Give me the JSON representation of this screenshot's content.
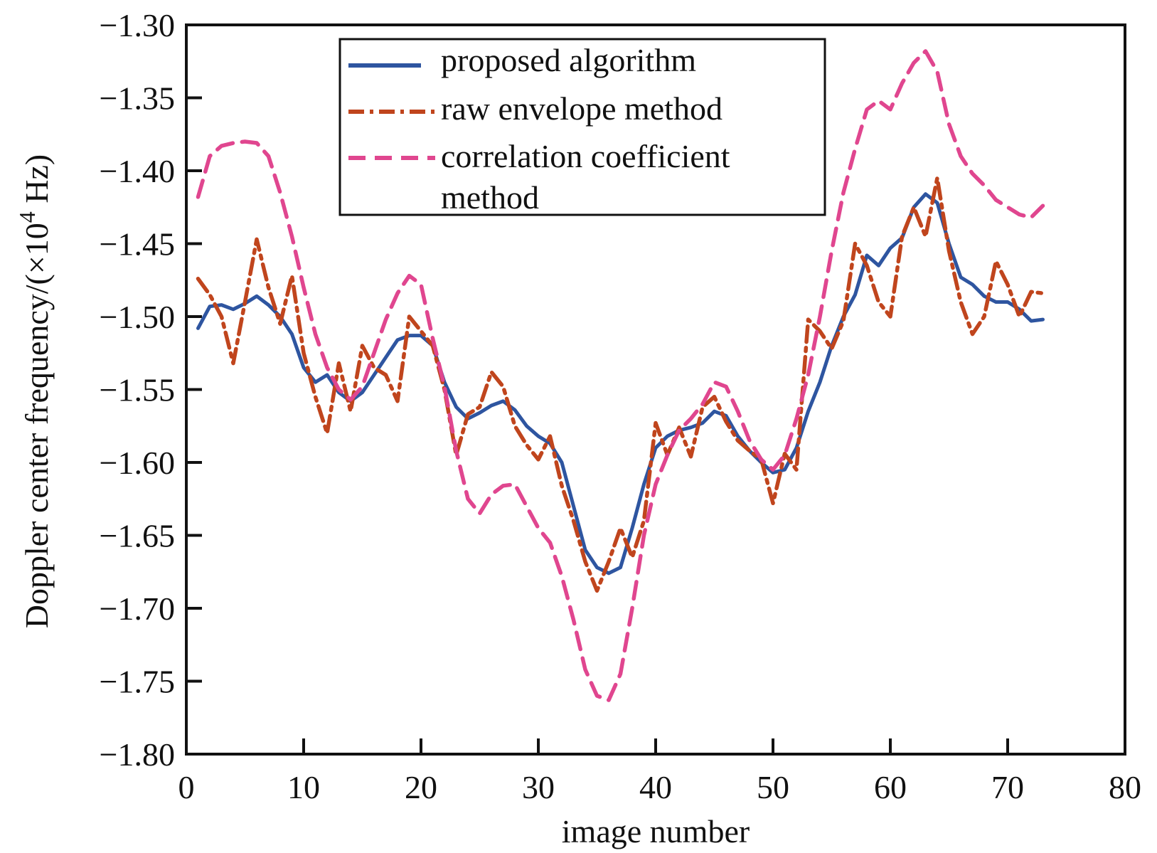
{
  "chart_data": {
    "type": "line",
    "xlabel": "image number",
    "ylabel": "Doppler center frequency/(×10",
    "ylabel_exp": "4",
    "ylabel_unit": " Hz)",
    "xlim": [
      0,
      80
    ],
    "ylim": [
      -1.8,
      -1.3
    ],
    "xticks": [
      0,
      10,
      20,
      30,
      40,
      50,
      60,
      70,
      80
    ],
    "yticks": [
      -1.3,
      -1.35,
      -1.4,
      -1.45,
      -1.5,
      -1.55,
      -1.6,
      -1.65,
      -1.7,
      -1.75,
      -1.8
    ],
    "xtick_labels": [
      "0",
      "10",
      "20",
      "30",
      "40",
      "50",
      "60",
      "70",
      "80"
    ],
    "ytick_labels": [
      "−1.30",
      "−1.35",
      "−1.40",
      "−1.45",
      "−1.50",
      "−1.55",
      "−1.60",
      "−1.65",
      "−1.70",
      "−1.75",
      "−1.80"
    ],
    "grid": false,
    "legend_position": "top-center",
    "series": [
      {
        "name": "proposed algorithm",
        "style": "solid",
        "color": "#2e55a0",
        "x": [
          1,
          2,
          3,
          4,
          5,
          6,
          7,
          8,
          9,
          10,
          11,
          12,
          13,
          14,
          15,
          16,
          17,
          18,
          19,
          20,
          21,
          22,
          23,
          24,
          25,
          26,
          27,
          28,
          29,
          30,
          31,
          32,
          33,
          34,
          35,
          36,
          37,
          38,
          39,
          40,
          41,
          42,
          43,
          44,
          45,
          46,
          47,
          48,
          49,
          50,
          51,
          52,
          53,
          54,
          55,
          56,
          57,
          58,
          59,
          60,
          61,
          62,
          63,
          64,
          65,
          66,
          67,
          68,
          69,
          70,
          71,
          72,
          73
        ],
        "y": [
          -1.508,
          -1.493,
          -1.492,
          -1.495,
          -1.491,
          -1.486,
          -1.492,
          -1.5,
          -1.512,
          -1.535,
          -1.545,
          -1.54,
          -1.552,
          -1.558,
          -1.552,
          -1.54,
          -1.528,
          -1.516,
          -1.513,
          -1.513,
          -1.52,
          -1.545,
          -1.562,
          -1.57,
          -1.566,
          -1.561,
          -1.558,
          -1.564,
          -1.575,
          -1.582,
          -1.587,
          -1.6,
          -1.63,
          -1.66,
          -1.672,
          -1.676,
          -1.672,
          -1.645,
          -1.615,
          -1.59,
          -1.582,
          -1.578,
          -1.576,
          -1.573,
          -1.565,
          -1.568,
          -1.582,
          -1.592,
          -1.6,
          -1.607,
          -1.605,
          -1.59,
          -1.565,
          -1.545,
          -1.52,
          -1.5,
          -1.485,
          -1.458,
          -1.465,
          -1.453,
          -1.446,
          -1.425,
          -1.416,
          -1.422,
          -1.45,
          -1.473,
          -1.478,
          -1.486,
          -1.49,
          -1.49,
          -1.495,
          -1.503,
          -1.502
        ]
      },
      {
        "name": "raw envelope method",
        "style": "dashdot",
        "color": "#c0451d",
        "x": [
          1,
          2,
          3,
          4,
          5,
          6,
          7,
          8,
          9,
          10,
          11,
          12,
          13,
          14,
          15,
          16,
          17,
          18,
          19,
          20,
          21,
          22,
          23,
          24,
          25,
          26,
          27,
          28,
          29,
          30,
          31,
          32,
          33,
          34,
          35,
          36,
          37,
          38,
          39,
          40,
          41,
          42,
          43,
          44,
          45,
          46,
          47,
          48,
          49,
          50,
          51,
          52,
          53,
          54,
          55,
          56,
          57,
          58,
          59,
          60,
          61,
          62,
          63,
          64,
          65,
          66,
          67,
          68,
          69,
          70,
          71,
          72,
          73
        ],
        "y": [
          -1.474,
          -1.485,
          -1.5,
          -1.532,
          -1.49,
          -1.447,
          -1.48,
          -1.505,
          -1.472,
          -1.525,
          -1.555,
          -1.58,
          -1.532,
          -1.565,
          -1.52,
          -1.535,
          -1.54,
          -1.558,
          -1.5,
          -1.51,
          -1.52,
          -1.55,
          -1.595,
          -1.567,
          -1.562,
          -1.538,
          -1.548,
          -1.575,
          -1.588,
          -1.598,
          -1.582,
          -1.616,
          -1.64,
          -1.668,
          -1.688,
          -1.668,
          -1.645,
          -1.665,
          -1.64,
          -1.573,
          -1.595,
          -1.576,
          -1.596,
          -1.562,
          -1.555,
          -1.572,
          -1.585,
          -1.592,
          -1.598,
          -1.628,
          -1.594,
          -1.605,
          -1.502,
          -1.51,
          -1.522,
          -1.503,
          -1.45,
          -1.465,
          -1.49,
          -1.5,
          -1.445,
          -1.425,
          -1.445,
          -1.405,
          -1.455,
          -1.49,
          -1.512,
          -1.5,
          -1.462,
          -1.478,
          -1.5,
          -1.483,
          -1.484
        ]
      },
      {
        "name": "correlation coefficient method",
        "style": "dashed",
        "color": "#e0468f",
        "x": [
          1,
          2,
          3,
          4,
          5,
          6,
          7,
          8,
          9,
          10,
          11,
          12,
          13,
          14,
          15,
          16,
          17,
          18,
          19,
          20,
          21,
          22,
          23,
          24,
          25,
          26,
          27,
          28,
          29,
          30,
          31,
          32,
          33,
          34,
          35,
          36,
          37,
          38,
          39,
          40,
          41,
          42,
          43,
          44,
          45,
          46,
          47,
          48,
          49,
          50,
          51,
          52,
          53,
          54,
          55,
          56,
          57,
          58,
          59,
          60,
          61,
          62,
          63,
          64,
          65,
          66,
          67,
          68,
          69,
          70,
          71,
          72,
          73
        ],
        "y": [
          -1.418,
          -1.39,
          -1.383,
          -1.381,
          -1.38,
          -1.381,
          -1.39,
          -1.415,
          -1.445,
          -1.48,
          -1.512,
          -1.535,
          -1.55,
          -1.557,
          -1.548,
          -1.525,
          -1.502,
          -1.484,
          -1.472,
          -1.478,
          -1.515,
          -1.548,
          -1.592,
          -1.625,
          -1.635,
          -1.622,
          -1.616,
          -1.615,
          -1.63,
          -1.645,
          -1.655,
          -1.678,
          -1.708,
          -1.742,
          -1.76,
          -1.763,
          -1.745,
          -1.7,
          -1.65,
          -1.615,
          -1.595,
          -1.578,
          -1.57,
          -1.56,
          -1.545,
          -1.548,
          -1.565,
          -1.585,
          -1.598,
          -1.605,
          -1.595,
          -1.57,
          -1.54,
          -1.5,
          -1.455,
          -1.415,
          -1.385,
          -1.358,
          -1.352,
          -1.358,
          -1.34,
          -1.326,
          -1.318,
          -1.332,
          -1.368,
          -1.39,
          -1.402,
          -1.41,
          -1.42,
          -1.425,
          -1.43,
          -1.432,
          -1.424
        ]
      }
    ],
    "legend_entries": [
      "proposed algorithm",
      "raw envelope method",
      "correlation coefficient",
      "method"
    ]
  }
}
